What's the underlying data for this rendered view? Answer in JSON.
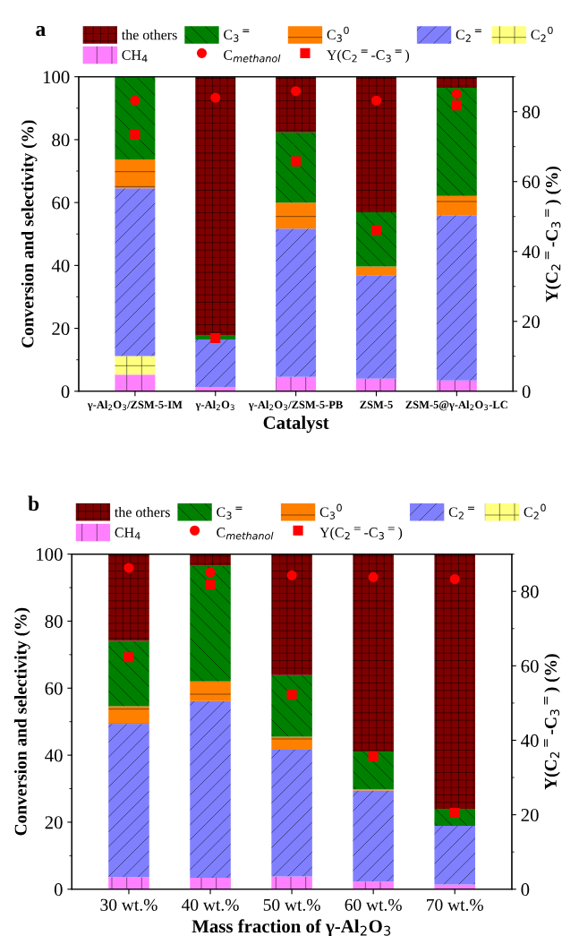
{
  "chart_data": [
    {
      "type": "bar",
      "stacked": true,
      "title": "a",
      "xlabel": "Catalyst",
      "ylabel": "Conversion and selectivity (%)",
      "y2label": "Y(C$_{2}$$^{=}$-C$_{3}$$^{=}$) (%)",
      "categories": [
        "γ-Al$_{2}$O$_{3}$/ZSM-5-IM",
        "γ-Al$_{2}$O$_{3}$",
        "γ-Al$_{2}$O$_{3}$/ZSM-5-PB",
        "ZSM-5",
        "ZSM-5@γ-Al$_{2}$O$_{3}$-LC"
      ],
      "ylim": [
        0,
        100
      ],
      "yticks": [
        0,
        20,
        40,
        60,
        80,
        100
      ],
      "y2lim": [
        0,
        90
      ],
      "y2ticks": [
        0,
        20,
        40,
        60,
        80
      ],
      "legend": "top",
      "grid": false,
      "series": [
        {
          "name": "CH$_{4}$",
          "color": "#ff80ff",
          "values": [
            5.3,
            1.3,
            4.6,
            4.0,
            3.4
          ]
        },
        {
          "name": "C$_{2}$$^{0}$",
          "color": "#ffff80",
          "values": [
            5.9,
            0,
            0,
            0,
            0
          ]
        },
        {
          "name": "C$_{2}$$^{=}$",
          "color": "#8080ff",
          "values": [
            53.3,
            15.2,
            47.1,
            32.9,
            52.6
          ]
        },
        {
          "name": "C$_{3}$$^{0}$",
          "color": "#ff8000",
          "values": [
            9.2,
            0,
            8.3,
            2.8,
            6.1
          ]
        },
        {
          "name": "C$_{3}$$^{=}$",
          "color": "#008000",
          "values": [
            26.0,
            1.2,
            22.3,
            17.2,
            34.4
          ]
        },
        {
          "name": "the others",
          "color": "#800000",
          "values": [
            0.3,
            82.3,
            17.7,
            43.1,
            3.5
          ]
        },
        {
          "name": "C$_{methanol}$",
          "type": "scatter",
          "axis": "y2",
          "marker": "circle",
          "color": "#ff0000",
          "values": [
            83.2,
            84.0,
            85.9,
            83.2,
            85.1
          ]
        },
        {
          "name": "Y(C$_{2}$$^{=}$-C$_{3}$$^{=}$)",
          "type": "scatter",
          "axis": "y2",
          "marker": "square",
          "color": "#ff0000",
          "values": [
            73.4,
            15.2,
            65.8,
            46.1,
            81.8
          ]
        }
      ]
    },
    {
      "type": "bar",
      "stacked": true,
      "title": "b",
      "xlabel": "Mass fraction of γ-Al$_{2}$O$_{3}$",
      "ylabel": "Conversion and selectivity (%)",
      "y2label": "Y(C$_{2}$$^{=}$-C$_{3}$$^{=}$) (%)",
      "categories": [
        "30 wt.%",
        "40 wt.%",
        "50 wt.%",
        "60 wt.%",
        "70 wt.%"
      ],
      "ylim": [
        0,
        100
      ],
      "yticks": [
        0,
        20,
        40,
        60,
        80,
        100
      ],
      "y2lim": [
        0,
        90
      ],
      "y2ticks": [
        0,
        20,
        40,
        60,
        80
      ],
      "legend": "top",
      "grid": false,
      "series": [
        {
          "name": "CH$_{4}$",
          "color": "#ff80ff",
          "values": [
            3.6,
            3.4,
            3.8,
            2.3,
            1.4
          ]
        },
        {
          "name": "C$_{2}$$^{0}$",
          "color": "#ffff80",
          "values": [
            0,
            0,
            0,
            0,
            0
          ]
        },
        {
          "name": "C$_{2}$$^{=}$",
          "color": "#8080ff",
          "values": [
            45.7,
            52.7,
            37.8,
            27.2,
            17.5
          ]
        },
        {
          "name": "C$_{3}$$^{0}$",
          "color": "#ff8000",
          "values": [
            5.3,
            5.9,
            3.9,
            0.4,
            0
          ]
        },
        {
          "name": "C$_{3}$$^{=}$",
          "color": "#008000",
          "values": [
            19.5,
            34.5,
            18.4,
            11.2,
            5.1
          ]
        },
        {
          "name": "the others",
          "color": "#800000",
          "values": [
            25.9,
            3.5,
            36.1,
            58.9,
            76.0
          ]
        },
        {
          "name": "C$_{methanol}$",
          "type": "scatter",
          "axis": "y2",
          "marker": "circle",
          "color": "#ff0000",
          "values": [
            86.3,
            85.1,
            84.3,
            83.8,
            83.3
          ]
        },
        {
          "name": "Y(C$_{2}$$^{=}$-C$_{3}$$^{=}$)",
          "type": "scatter",
          "axis": "y2",
          "marker": "square",
          "color": "#ff0000",
          "values": [
            62.3,
            81.8,
            52.2,
            35.7,
            20.5
          ]
        }
      ]
    }
  ]
}
